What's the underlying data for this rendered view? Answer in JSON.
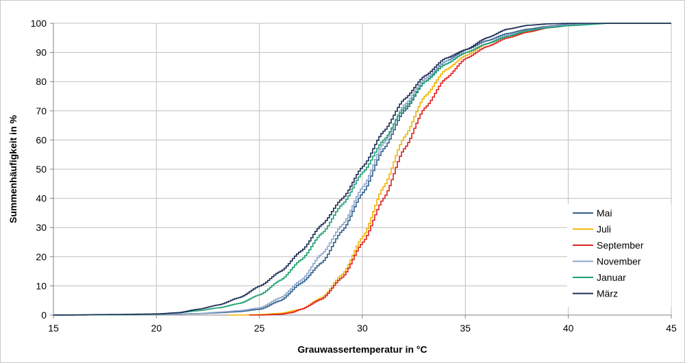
{
  "chart_data": {
    "type": "line",
    "title": "",
    "xlabel": "Grauwassertemperatur in °C",
    "ylabel": "Summenhäufigkeit in %",
    "xlim": [
      15,
      45
    ],
    "ylim": [
      0,
      100
    ],
    "xticks": [
      "15",
      "20",
      "25",
      "30",
      "35",
      "40",
      "45"
    ],
    "yticks": [
      "0",
      "10",
      "20",
      "30",
      "40",
      "50",
      "60",
      "70",
      "80",
      "90",
      "100"
    ],
    "grid": true,
    "legend_position": "right",
    "series": [
      {
        "name": "Mai",
        "color": "#2f5f8a",
        "points": [
          [
            15,
            0
          ],
          [
            20,
            0.2
          ],
          [
            22,
            0.5
          ],
          [
            23,
            0.8
          ],
          [
            24,
            1.2
          ],
          [
            25,
            2
          ],
          [
            26,
            5
          ],
          [
            27,
            11
          ],
          [
            28,
            18
          ],
          [
            29,
            29
          ],
          [
            30,
            42
          ],
          [
            31,
            57
          ],
          [
            32,
            70
          ],
          [
            33,
            80
          ],
          [
            34,
            87
          ],
          [
            35,
            91
          ],
          [
            36,
            94
          ],
          [
            37,
            96.5
          ],
          [
            38,
            98
          ],
          [
            39,
            99
          ],
          [
            40,
            99.7
          ],
          [
            42,
            100
          ],
          [
            45,
            100
          ]
        ]
      },
      {
        "name": "Juli",
        "color": "#f0b400",
        "points": [
          [
            23.5,
            0
          ],
          [
            24,
            0
          ],
          [
            25,
            0.2
          ],
          [
            26,
            0.6
          ],
          [
            27,
            2
          ],
          [
            28,
            6
          ],
          [
            29,
            14
          ],
          [
            30,
            27
          ],
          [
            31,
            44
          ],
          [
            32,
            61
          ],
          [
            33,
            75
          ],
          [
            34,
            84
          ],
          [
            35,
            89
          ],
          [
            36,
            93
          ],
          [
            37,
            95.5
          ],
          [
            38,
            97
          ],
          [
            39,
            98.5
          ],
          [
            40,
            99.2
          ],
          [
            41,
            99.7
          ],
          [
            42,
            100
          ],
          [
            45,
            100
          ]
        ]
      },
      {
        "name": "September",
        "color": "#e02020",
        "points": [
          [
            24.5,
            0
          ],
          [
            25,
            0
          ],
          [
            26,
            0.3
          ],
          [
            26.5,
            0.8
          ],
          [
            27,
            2
          ],
          [
            28,
            5.5
          ],
          [
            29,
            13
          ],
          [
            30,
            25
          ],
          [
            31,
            40
          ],
          [
            32,
            57
          ],
          [
            33,
            71
          ],
          [
            34,
            81
          ],
          [
            35,
            88
          ],
          [
            36,
            92
          ],
          [
            37,
            95
          ],
          [
            38,
            97
          ],
          [
            39,
            98.5
          ],
          [
            40,
            99.3
          ],
          [
            41,
            99.8
          ],
          [
            42,
            100
          ],
          [
            45,
            100
          ]
        ]
      },
      {
        "name": "November",
        "color": "#8ea4cc",
        "points": [
          [
            15,
            0
          ],
          [
            20,
            0.2
          ],
          [
            22,
            0.5
          ],
          [
            23,
            1
          ],
          [
            24,
            1.5
          ],
          [
            25,
            2.5
          ],
          [
            26,
            6
          ],
          [
            27,
            12
          ],
          [
            28,
            21
          ],
          [
            29,
            31
          ],
          [
            30,
            44
          ],
          [
            31,
            59
          ],
          [
            32,
            72
          ],
          [
            33,
            81
          ],
          [
            34,
            87
          ],
          [
            35,
            90
          ],
          [
            36,
            93
          ],
          [
            37,
            96
          ],
          [
            38,
            97.5
          ],
          [
            39,
            98.8
          ],
          [
            40,
            99.5
          ],
          [
            42,
            100
          ],
          [
            45,
            100
          ]
        ]
      },
      {
        "name": "Januar",
        "color": "#1aa070",
        "points": [
          [
            15,
            0
          ],
          [
            18,
            0.1
          ],
          [
            20,
            0.3
          ],
          [
            21,
            0.8
          ],
          [
            22,
            1.5
          ],
          [
            23,
            2.5
          ],
          [
            24,
            4
          ],
          [
            25,
            7
          ],
          [
            26,
            12
          ],
          [
            27,
            19
          ],
          [
            28,
            28
          ],
          [
            29,
            38
          ],
          [
            30,
            49
          ],
          [
            31,
            60
          ],
          [
            32,
            71
          ],
          [
            33,
            80
          ],
          [
            34,
            86
          ],
          [
            35,
            90
          ],
          [
            36,
            93
          ],
          [
            37,
            95.5
          ],
          [
            38,
            97.5
          ],
          [
            39,
            98.5
          ],
          [
            40,
            99.2
          ],
          [
            42,
            100
          ],
          [
            45,
            100
          ]
        ]
      },
      {
        "name": "März",
        "color": "#1c2c55",
        "points": [
          [
            15,
            0
          ],
          [
            18,
            0.2
          ],
          [
            20,
            0.4
          ],
          [
            21,
            0.8
          ],
          [
            22,
            2
          ],
          [
            23,
            3.5
          ],
          [
            24,
            6
          ],
          [
            25,
            10
          ],
          [
            26,
            15
          ],
          [
            27,
            22
          ],
          [
            28,
            31
          ],
          [
            29,
            40
          ],
          [
            30,
            51
          ],
          [
            31,
            63
          ],
          [
            32,
            74
          ],
          [
            33,
            82
          ],
          [
            34,
            88
          ],
          [
            35,
            91
          ],
          [
            36,
            95
          ],
          [
            37,
            98
          ],
          [
            38,
            99.3
          ],
          [
            39,
            99.8
          ],
          [
            40,
            100
          ],
          [
            45,
            100
          ]
        ]
      }
    ]
  }
}
